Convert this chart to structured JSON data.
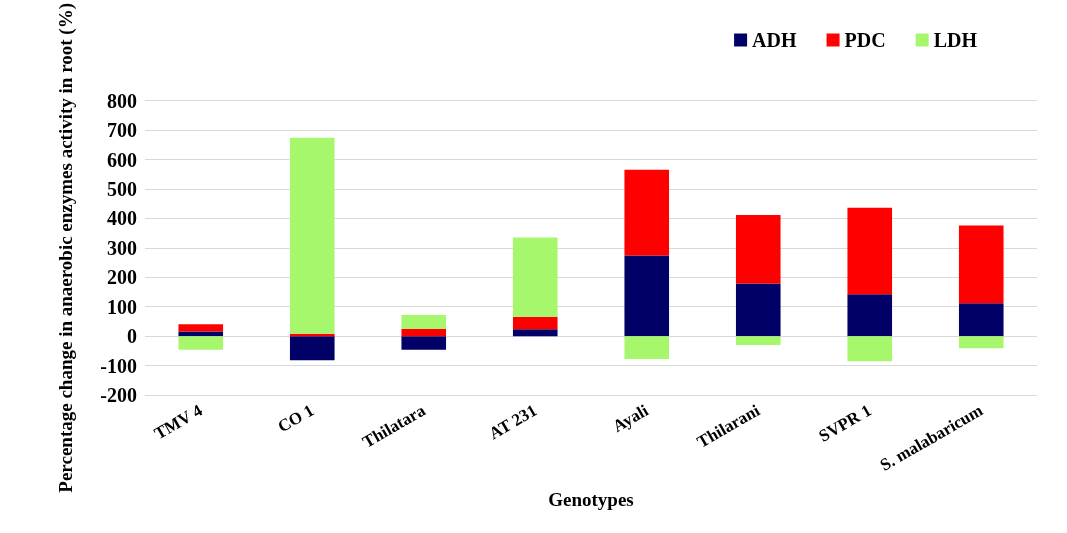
{
  "chart_data": {
    "type": "bar",
    "stacked": true,
    "xlabel": "Genotypes",
    "ylabel": "Percentage change in anaerobic enzymes activity in root (%)",
    "categories": [
      "TMV 4",
      "CO 1",
      "Thilatara",
      "AT 231",
      "Ayali",
      "Thilarani",
      "SVPR 1",
      "S. malabaricum"
    ],
    "series": [
      {
        "name": "ADH",
        "color": "#000066",
        "values": [
          16,
          -82,
          -46,
          23,
          274,
          179,
          142,
          112
        ]
      },
      {
        "name": "PDC",
        "color": "#ff0000",
        "values": [
          24,
          8,
          24,
          42,
          291,
          233,
          294,
          264
        ]
      },
      {
        "name": "LDH",
        "color": "#a6f76b",
        "values": [
          -46,
          666,
          48,
          270,
          -78,
          -30,
          -85,
          -41
        ]
      }
    ],
    "ylim": [
      -200,
      800
    ],
    "yticks": [
      -200,
      -100,
      0,
      100,
      200,
      300,
      400,
      500,
      600,
      700,
      800
    ],
    "grid": "y",
    "legend": "top right"
  }
}
